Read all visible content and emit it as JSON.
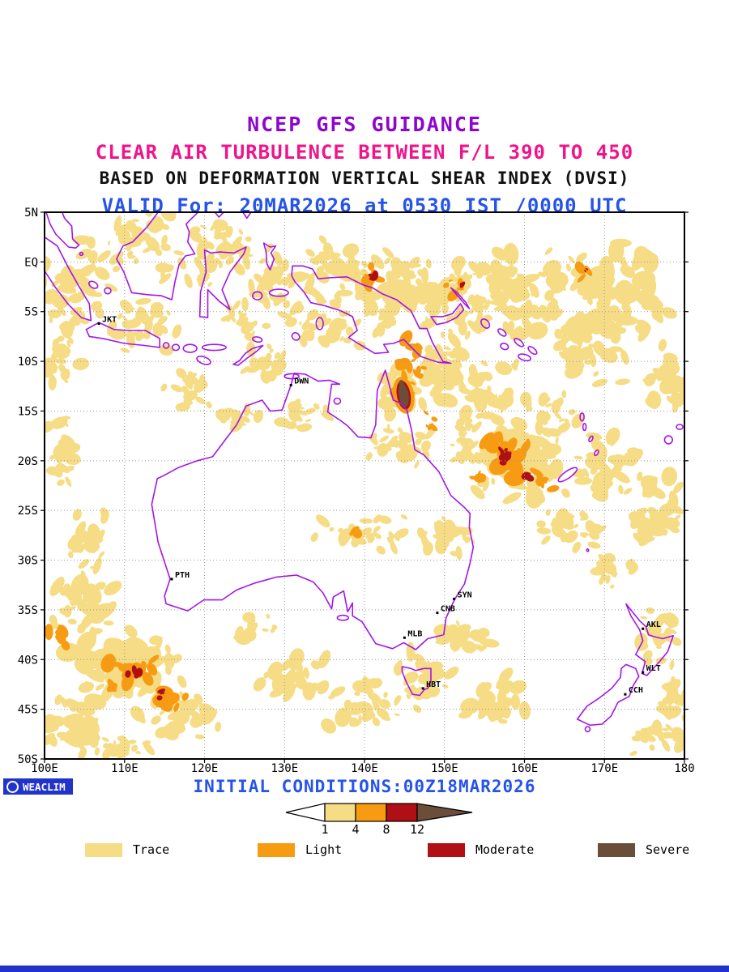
{
  "header": {
    "line1": "NCEP GFS GUIDANCE",
    "line2": "CLEAR AIR TURBULENCE BETWEEN F/L 390 TO 450",
    "line3": "BASED ON DEFORMATION VERTICAL SHEAR INDEX (DVSI)",
    "line4": "VALID For: 20MAR2026 at 0530 IST /0000 UTC"
  },
  "axes": {
    "lat_ticks": [
      "5N",
      "EQ",
      "5S",
      "10S",
      "15S",
      "20S",
      "25S",
      "30S",
      "35S",
      "40S",
      "45S",
      "50S"
    ],
    "lon_ticks": [
      "100E",
      "110E",
      "120E",
      "130E",
      "140E",
      "150E",
      "160E",
      "170E",
      "180"
    ]
  },
  "map": {
    "cities": [
      {
        "code": "JKT",
        "lon": 106.8,
        "lat": -6.2
      },
      {
        "code": "DWN",
        "lon": 130.8,
        "lat": -12.4
      },
      {
        "code": "PTH",
        "lon": 115.9,
        "lat": -31.9
      },
      {
        "code": "SYN",
        "lon": 151.2,
        "lat": -33.9
      },
      {
        "code": "CNB",
        "lon": 149.1,
        "lat": -35.3
      },
      {
        "code": "MLB",
        "lon": 145.0,
        "lat": -37.8
      },
      {
        "code": "HBT",
        "lon": 147.3,
        "lat": -42.9
      },
      {
        "code": "AKL",
        "lon": 174.8,
        "lat": -36.9
      },
      {
        "code": "WLT",
        "lon": 174.8,
        "lat": -41.3
      },
      {
        "code": "CCH",
        "lon": 172.6,
        "lat": -43.5
      }
    ]
  },
  "legend": {
    "thresholds": [
      "1",
      "4",
      "8",
      "12"
    ],
    "arrow_below_color": "#FFFFFF",
    "categories": [
      {
        "label": "Trace",
        "color": "#F5DC85"
      },
      {
        "label": "Light",
        "color": "#F79C12"
      },
      {
        "label": "Moderate",
        "color": "#B01015"
      },
      {
        "label": "Severe",
        "color": "#6B4E3A"
      }
    ]
  },
  "footer": {
    "initial_conditions": "INITIAL CONDITIONS:00Z18MAR2026",
    "logo_text": "WEACLIM",
    "logo_icon": "circle-ring-icon"
  },
  "colors": {
    "title_purple": "#8E06CD",
    "product_pink": "#F0148C",
    "method_black": "#111111",
    "valid_blue": "#2653E8",
    "footer_blue": "#2233CC",
    "coast_purple": "#A316E8",
    "gridline_gray": "#999999",
    "frame_black": "#000000"
  },
  "chart_data": {
    "type": "filled-contour-map",
    "title": "NCEP GFS GUIDANCE - Clear Air Turbulence between F/L 390 to 450",
    "index": "Deformation Vertical Shear Index (DVSI)",
    "valid": "20MAR2026 at 0530 IST /0000 UTC",
    "initial_conditions": "00Z18MAR2026",
    "lon_range": [
      100,
      180
    ],
    "lat_range": [
      -50,
      5
    ],
    "grid_spacing": {
      "lon_deg": 10,
      "lat_deg": 5
    },
    "levels": [
      1,
      4,
      8,
      12
    ],
    "categories": [
      {
        "label": "Trace",
        "range": "1-4",
        "color": "#F5DC85"
      },
      {
        "label": "Light",
        "range": "4-8",
        "color": "#F79C12"
      },
      {
        "label": "Moderate",
        "range": "8-12",
        "color": "#B01015"
      },
      {
        "label": "Severe",
        "range": ">12",
        "color": "#6B4E3A"
      }
    ],
    "notable_areas": [
      {
        "area": "SE Indian Ocean (105E-118E, 38S-46S)",
        "max_category": "Moderate"
      },
      {
        "area": "Coral Sea (152E-164E, 16S-24S)",
        "max_category": "Moderate"
      },
      {
        "area": "Cape York / Gulf region (~145E, 12S-15S)",
        "max_category": "Severe"
      },
      {
        "area": "North of New Guinea (~141E, 1S-3S)",
        "max_category": "Moderate"
      },
      {
        "area": "Equatorial SW Pacific (165E-180E, 5N-10S)",
        "max_category": "Trace"
      },
      {
        "area": "Maritime Continent (100E-150E, 5N-10S)",
        "max_category": "Trace"
      }
    ]
  }
}
